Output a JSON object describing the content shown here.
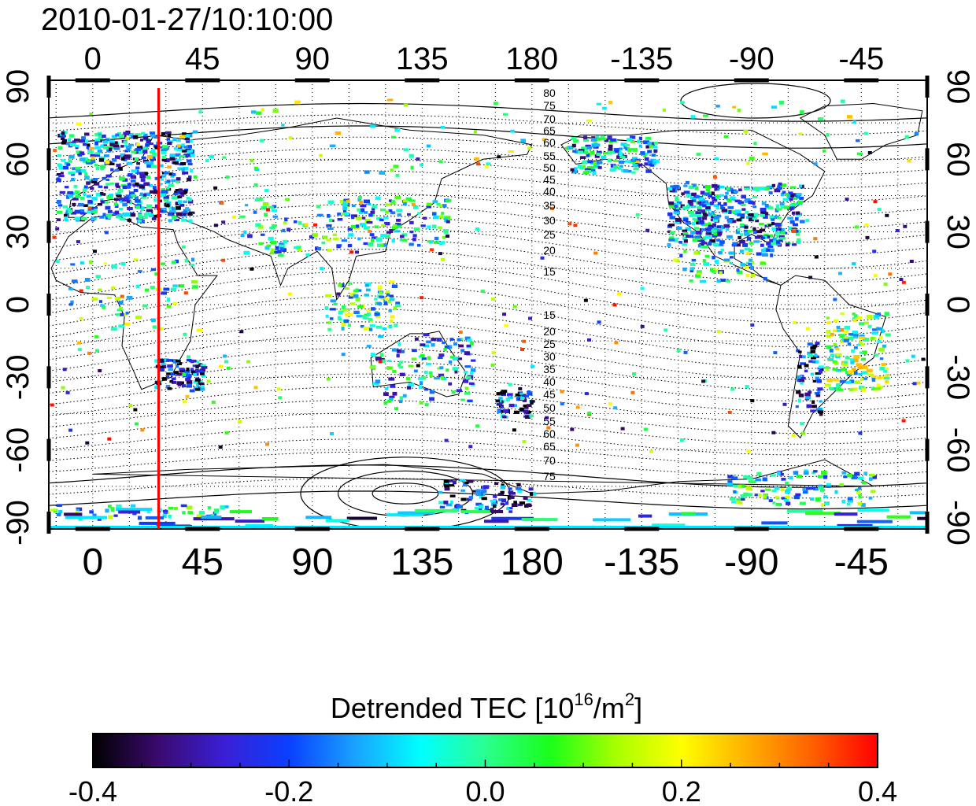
{
  "timestamp": "2010-01-27/10:10:00",
  "map": {
    "top_ticks": [
      "0",
      "45",
      "90",
      "135",
      "180",
      "-135",
      "-90",
      "-45"
    ],
    "bottom_ticks": [
      "0",
      "45",
      "90",
      "135",
      "180",
      "-135",
      "-90",
      "-45"
    ],
    "left_ticks": [
      "90",
      "60",
      "30",
      "0",
      "-30",
      "-60",
      "-90"
    ],
    "right_ticks": [
      "90",
      "60",
      "30",
      "0",
      "-30",
      "-60",
      "-90"
    ],
    "contour_labels_north": [
      "80",
      "75",
      "70",
      "65",
      "60",
      "55",
      "50",
      "45",
      "40",
      "35",
      "30",
      "25",
      "20",
      "15"
    ],
    "contour_labels_south": [
      "15",
      "20",
      "25",
      "30",
      "35",
      "40",
      "45",
      "50",
      "55",
      "60",
      "65",
      "70",
      "75"
    ],
    "marker_line_color": "#ff0000",
    "marker_longitude": 27
  },
  "colorbar": {
    "title_prefix": "Detrended TEC  [10",
    "title_sup1": "16",
    "title_mid": "/m",
    "title_sup2": "2",
    "title_suffix": "]",
    "tick_labels": [
      "-0.4",
      "-0.2",
      "0.0",
      "0.2",
      "0.4"
    ],
    "range": [
      -0.4,
      0.4
    ],
    "colormap": [
      "#000000",
      "#3a0a6e",
      "#3a1fd6",
      "#0a40ff",
      "#1aa0ff",
      "#00ffff",
      "#2aff90",
      "#1aff1a",
      "#a8ff00",
      "#ffff00",
      "#ffb000",
      "#ff6000",
      "#ff0000"
    ]
  }
}
